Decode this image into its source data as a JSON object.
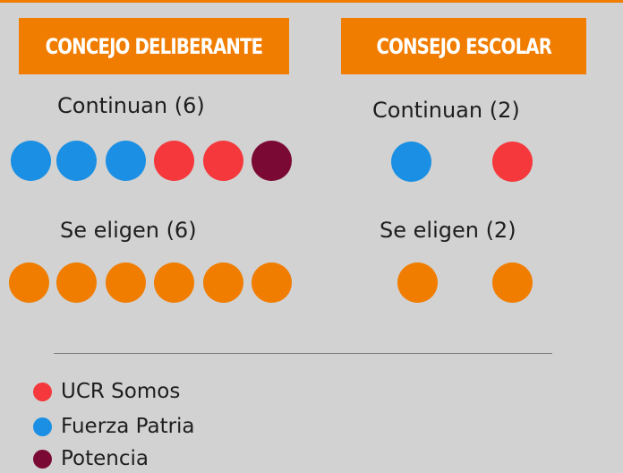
{
  "colors": {
    "orange": "#f07d00",
    "ucr": "#f5383b",
    "fuerza": "#1a8fe3",
    "potencia": "#7a0a34"
  },
  "left_panel": {
    "title": "CONCEJO DELIBERANTE",
    "continuan_label": "Continuan (6)",
    "continuan_dots": [
      "fuerza",
      "fuerza",
      "fuerza",
      "ucr",
      "ucr",
      "potencia"
    ],
    "se_eligen_label": "Se eligen (6)",
    "se_eligen_dots": [
      "orange",
      "orange",
      "orange",
      "orange",
      "orange",
      "orange"
    ]
  },
  "right_panel": {
    "title": "CONSEJO ESCOLAR",
    "continuan_label": "Continuan (2)",
    "continuan_dots": [
      "fuerza",
      "ucr"
    ],
    "se_eligen_label": "Se eligen  (2)",
    "se_eligen_dots": [
      "orange",
      "orange"
    ]
  },
  "legend": [
    {
      "label": "UCR Somos",
      "color": "ucr"
    },
    {
      "label": "Fuerza Patria",
      "color": "fuerza"
    },
    {
      "label": "Potencia",
      "color": "potencia"
    }
  ]
}
